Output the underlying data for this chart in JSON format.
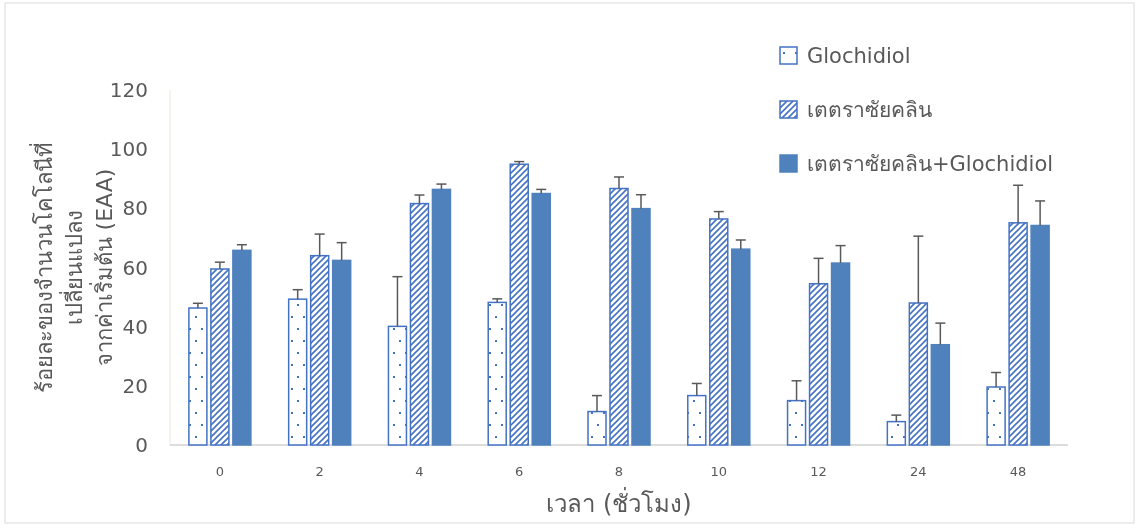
{
  "chart_data": {
    "type": "bar",
    "xlabel": "เวลา (ชั่วโมง)",
    "ylabel": "ร้อยละของจำนวนโคโลนีที่\nเปลี่ยนแปลง\nจากค่าเริ่มต้น (EAA)",
    "categories": [
      "0",
      "2",
      "4",
      "6",
      "8",
      "10",
      "12",
      "24",
      "48"
    ],
    "ylim": [
      0,
      120
    ],
    "yticks": [
      0,
      20,
      40,
      60,
      80,
      100,
      120
    ],
    "grid": false,
    "legend": "top right",
    "series": [
      {
        "name": "Glochidiol",
        "color": "#4472c4",
        "values": [
          46.3,
          49.3,
          40.1,
          48.2,
          11.3,
          16.7,
          15.0,
          7.9,
          19.6
        ],
        "errors": [
          [
            46.3,
            47.9
          ],
          [
            49.3,
            52.5
          ],
          [
            40.1,
            56.9
          ],
          [
            48.2,
            49.4
          ],
          [
            11.3,
            16.7
          ],
          [
            16.7,
            20.8
          ],
          [
            15.0,
            21.7
          ],
          [
            7.9,
            10.1
          ],
          [
            19.6,
            24.5
          ]
        ]
      },
      {
        "name": "เตตราซัยคลิน",
        "color": "#4472c4",
        "values": [
          59.5,
          64.0,
          81.6,
          94.9,
          86.7,
          76.4,
          54.5,
          48.0,
          75.1
        ],
        "errors": [
          [
            59.5,
            61.8
          ],
          [
            64.0,
            71.3
          ],
          [
            81.6,
            84.5
          ],
          [
            94.9,
            95.8
          ],
          [
            86.7,
            90.6
          ],
          [
            76.4,
            78.9
          ],
          [
            54.5,
            63.1
          ],
          [
            48.0,
            70.6
          ],
          [
            75.1,
            87.8
          ]
        ]
      },
      {
        "name": "เตตราซัยคลิน+Glochidiol",
        "color": "#4f81bd",
        "values": [
          65.8,
          62.4,
          86.4,
          85.0,
          79.9,
          66.2,
          61.5,
          33.9,
          74.2
        ],
        "errors": [
          [
            65.8,
            67.7
          ],
          [
            62.4,
            68.4
          ],
          [
            86.4,
            88.2
          ],
          [
            85.0,
            86.4
          ],
          [
            79.9,
            84.6
          ],
          [
            66.2,
            69.3
          ],
          [
            61.5,
            67.4
          ],
          [
            33.9,
            41.2
          ],
          [
            74.2,
            82.5
          ]
        ]
      }
    ]
  }
}
